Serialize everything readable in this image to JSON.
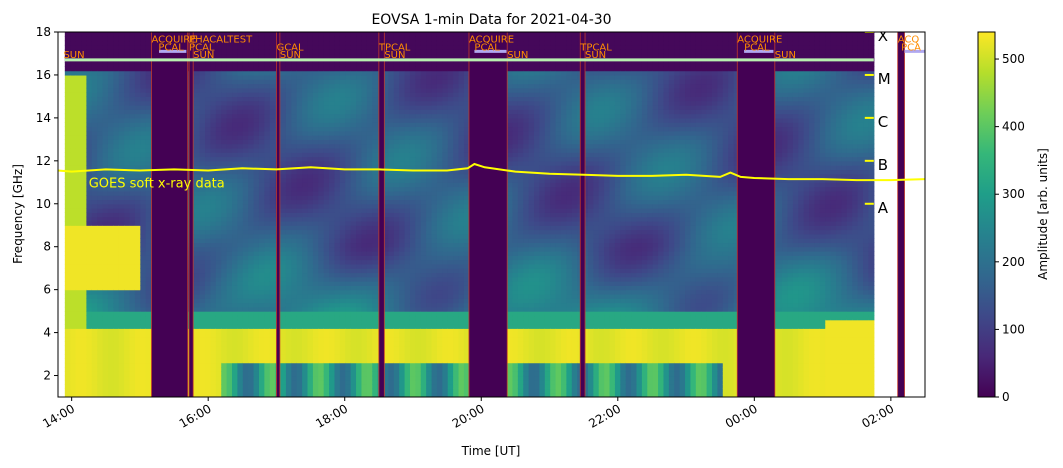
{
  "chart_data": {
    "type": "heatmap",
    "title": "EOVSA 1-min Data for 2021-04-30",
    "xlabel": "Time [UT]",
    "ylabel": "Frequency [GHz]",
    "colorbar_label": "Amplitude [arb. units]",
    "colormap": "viridis",
    "colormap_stops": [
      "#440154",
      "#482878",
      "#3e4989",
      "#31688e",
      "#26828e",
      "#1f9e89",
      "#35b779",
      "#6ece58",
      "#b5de2b",
      "#fde725"
    ],
    "xlim_hours": [
      13.8,
      26.5
    ],
    "ylim": [
      1,
      18
    ],
    "x_ticks": [
      {
        "hour": 14,
        "label": "14:00"
      },
      {
        "hour": 16,
        "label": "16:00"
      },
      {
        "hour": 18,
        "label": "18:00"
      },
      {
        "hour": 20,
        "label": "20:00"
      },
      {
        "hour": 22,
        "label": "22:00"
      },
      {
        "hour": 24,
        "label": "00:00"
      },
      {
        "hour": 26,
        "label": "02:00"
      }
    ],
    "y_ticks": [
      2,
      4,
      6,
      8,
      10,
      12,
      14,
      16,
      18
    ],
    "colorbar": {
      "range": [
        0,
        540
      ],
      "ticks": [
        0,
        100,
        200,
        300,
        400,
        500
      ]
    },
    "data_range_hours": [
      13.9,
      25.75
    ],
    "calibration_gaps": [
      {
        "start": 15.17,
        "end": 15.7
      },
      {
        "start": 15.72,
        "end": 15.78
      },
      {
        "start": 17.0,
        "end": 17.05
      },
      {
        "start": 18.5,
        "end": 18.58
      },
      {
        "start": 19.82,
        "end": 20.38
      },
      {
        "start": 21.45,
        "end": 21.52
      },
      {
        "start": 23.75,
        "end": 24.3
      },
      {
        "start": 26.1,
        "end": 26.2
      }
    ],
    "schedule_labels": [
      {
        "text": "SUN",
        "hour": 13.88,
        "row": 2
      },
      {
        "text": "ACQUIRE",
        "hour": 15.17,
        "row": 0
      },
      {
        "text": "PCAL",
        "hour": 15.27,
        "row": 1
      },
      {
        "text": "PHACALTEST",
        "hour": 15.72,
        "row": 0
      },
      {
        "text": "PCAL",
        "hour": 15.72,
        "row": 1
      },
      {
        "text": "SUN",
        "hour": 15.78,
        "row": 2
      },
      {
        "text": "GCAL",
        "hour": 17.0,
        "row": 1
      },
      {
        "text": "SUN",
        "hour": 17.05,
        "row": 2
      },
      {
        "text": "TPCAL",
        "hour": 18.5,
        "row": 1
      },
      {
        "text": "SUN",
        "hour": 18.58,
        "row": 2
      },
      {
        "text": "ACQUIRE",
        "hour": 19.82,
        "row": 0
      },
      {
        "text": "PCAL",
        "hour": 19.9,
        "row": 1
      },
      {
        "text": "SUN",
        "hour": 20.38,
        "row": 2
      },
      {
        "text": "TPCAL",
        "hour": 21.45,
        "row": 1
      },
      {
        "text": "SUN",
        "hour": 21.52,
        "row": 2
      },
      {
        "text": "ACQUIRE",
        "hour": 23.75,
        "row": 0
      },
      {
        "text": "PCAL",
        "hour": 23.85,
        "row": 1
      },
      {
        "text": "SUN",
        "hour": 24.3,
        "row": 2
      },
      {
        "text": "ACQ",
        "hour": 26.1,
        "row": 0
      },
      {
        "text": "PCA",
        "hour": 26.15,
        "row": 1
      }
    ],
    "schedule_bars": [
      {
        "start": 13.9,
        "end": 25.75,
        "freq": 16.7,
        "color": "#b8f0b0"
      },
      {
        "start": 15.28,
        "end": 15.68,
        "freq": 17.1,
        "color": "#b0a8f0"
      },
      {
        "start": 19.9,
        "end": 20.37,
        "freq": 17.1,
        "color": "#b0a8f0"
      },
      {
        "start": 23.85,
        "end": 24.28,
        "freq": 17.1,
        "color": "#b0a8f0"
      },
      {
        "start": 26.2,
        "end": 26.5,
        "freq": 17.1,
        "color": "#b0a8f0"
      }
    ],
    "goes": {
      "label": "GOES soft x-ray data",
      "color": "#ffff00",
      "label_hour": 14.25,
      "label_freq": 10.75,
      "series": [
        {
          "hour": 13.8,
          "freq": 11.55
        },
        {
          "hour": 14.0,
          "freq": 11.5
        },
        {
          "hour": 14.5,
          "freq": 11.6
        },
        {
          "hour": 15.0,
          "freq": 11.55
        },
        {
          "hour": 15.5,
          "freq": 11.6
        },
        {
          "hour": 16.0,
          "freq": 11.55
        },
        {
          "hour": 16.5,
          "freq": 11.65
        },
        {
          "hour": 17.0,
          "freq": 11.6
        },
        {
          "hour": 17.5,
          "freq": 11.7
        },
        {
          "hour": 18.0,
          "freq": 11.6
        },
        {
          "hour": 18.5,
          "freq": 11.6
        },
        {
          "hour": 19.0,
          "freq": 11.55
        },
        {
          "hour": 19.5,
          "freq": 11.55
        },
        {
          "hour": 19.8,
          "freq": 11.65
        },
        {
          "hour": 19.9,
          "freq": 11.85
        },
        {
          "hour": 20.05,
          "freq": 11.7
        },
        {
          "hour": 20.5,
          "freq": 11.5
        },
        {
          "hour": 21.0,
          "freq": 11.4
        },
        {
          "hour": 21.5,
          "freq": 11.35
        },
        {
          "hour": 22.0,
          "freq": 11.3
        },
        {
          "hour": 22.5,
          "freq": 11.3
        },
        {
          "hour": 23.0,
          "freq": 11.35
        },
        {
          "hour": 23.5,
          "freq": 11.25
        },
        {
          "hour": 23.65,
          "freq": 11.45
        },
        {
          "hour": 23.8,
          "freq": 11.25
        },
        {
          "hour": 24.0,
          "freq": 11.2
        },
        {
          "hour": 24.5,
          "freq": 11.15
        },
        {
          "hour": 25.0,
          "freq": 11.15
        },
        {
          "hour": 25.5,
          "freq": 11.1
        },
        {
          "hour": 26.0,
          "freq": 11.1
        },
        {
          "hour": 26.5,
          "freq": 11.15
        }
      ],
      "classes": [
        {
          "label": "X",
          "freq": 18
        },
        {
          "label": "M",
          "freq": 16
        },
        {
          "label": "C",
          "freq": 14
        },
        {
          "label": "B",
          "freq": 12
        },
        {
          "label": "A",
          "freq": 10
        }
      ],
      "class_marker_hour": 25.75
    }
  }
}
